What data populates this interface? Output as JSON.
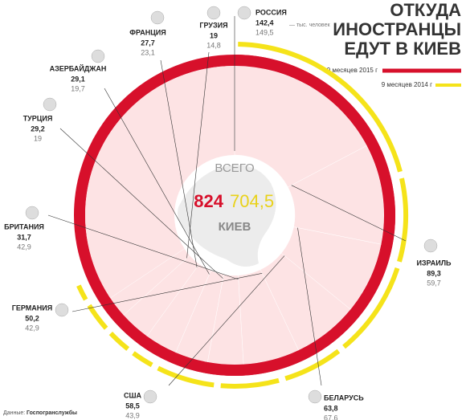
{
  "chart_data": {
    "type": "radial",
    "title": [
      "ОТКУДА",
      "ИНОСТРАНЦЫ",
      "ЕДУТ В КИЕВ"
    ],
    "unit_note": "— тыс. человек",
    "categories": [
      "РОССИЯ",
      "ИЗРАИЛЬ",
      "БЕЛАРУСЬ",
      "США",
      "ГЕРМАНИЯ",
      "БРИТАНИЯ",
      "ТУРЦИЯ",
      "АЗЕРБАЙДЖАН",
      "ФРАНЦИЯ",
      "ГРУЗИЯ"
    ],
    "series": [
      {
        "name": "9 месяцев 2015 г",
        "color": "#d7102b",
        "values": [
          142.4,
          89.3,
          63.8,
          58.5,
          50.2,
          31.7,
          29.2,
          29.1,
          27.7,
          19
        ],
        "value_labels": [
          "142,4",
          "89,3",
          "63,8",
          "58,5",
          "50,2",
          "31,7",
          "29,2",
          "29,1",
          "27,7",
          "19"
        ]
      },
      {
        "name": "9 месяцев 2014 г",
        "color": "#f5e31a",
        "values": [
          149.5,
          59.7,
          67.6,
          43.9,
          42.9,
          42.9,
          19,
          19.7,
          23.1,
          14.8
        ],
        "value_labels": [
          "149,5",
          "59,7",
          "67,6",
          "43,9",
          "42,9",
          "42,9",
          "19",
          "19,7",
          "23,1",
          "14,8"
        ]
      }
    ],
    "center": {
      "label": "ВСЕГО",
      "city": "КИЕВ",
      "totals": [
        824,
        704.5
      ],
      "total_labels": [
        "824",
        "704,5"
      ]
    },
    "source": [
      "Данные:",
      "Госпогранслужбы"
    ]
  }
}
